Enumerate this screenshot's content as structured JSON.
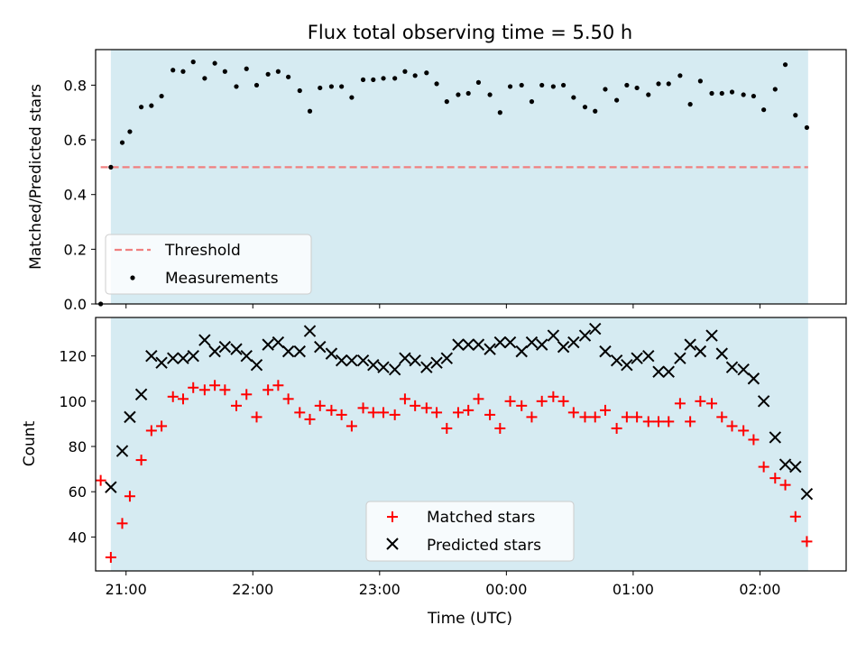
{
  "chart_data": [
    {
      "type": "scatter",
      "title": "Flux total observing time = 5.50 h",
      "ylabel": "Matched/Predicted stars",
      "xlabel": "",
      "ylim": [
        0,
        0.93
      ],
      "yticks": [
        "0.0",
        "0.2",
        "0.4",
        "0.6",
        "0.8"
      ],
      "xtick_values": [
        21,
        22,
        23,
        24,
        25,
        26
      ],
      "x_unit": "hours (UTC, relative to previous midnight)",
      "xlim": [
        20.76,
        26.68
      ],
      "observing_window": [
        20.88,
        26.38
      ],
      "shade_color": "#add8e6",
      "threshold": {
        "name": "Threshold",
        "value": 0.5,
        "x_range": [
          20.8,
          26.38
        ],
        "color": "#f08080"
      },
      "legend": {
        "position": "lower-left",
        "entries": [
          "Threshold",
          "Measurements"
        ]
      },
      "series": [
        {
          "name": "Measurements",
          "color": "#000000",
          "x": [
            20.8,
            20.88,
            20.97,
            21.03,
            21.12,
            21.2,
            21.28,
            21.37,
            21.45,
            21.53,
            21.62,
            21.7,
            21.78,
            21.87,
            21.95,
            22.03,
            22.12,
            22.2,
            22.28,
            22.37,
            22.45,
            22.53,
            22.62,
            22.7,
            22.78,
            22.87,
            22.95,
            23.03,
            23.12,
            23.2,
            23.28,
            23.37,
            23.45,
            23.53,
            23.62,
            23.7,
            23.78,
            23.87,
            23.95,
            24.03,
            24.12,
            24.2,
            24.28,
            24.37,
            24.45,
            24.53,
            24.62,
            24.7,
            24.78,
            24.87,
            24.95,
            25.03,
            25.12,
            25.2,
            25.28,
            25.37,
            25.45,
            25.53,
            25.62,
            25.7,
            25.78,
            25.87,
            25.95,
            26.03,
            26.12,
            26.2,
            26.28,
            26.37
          ],
          "y": [
            0.0,
            0.5,
            0.59,
            0.63,
            0.72,
            0.725,
            0.76,
            0.855,
            0.85,
            0.885,
            0.825,
            0.88,
            0.85,
            0.795,
            0.86,
            0.8,
            0.84,
            0.85,
            0.83,
            0.78,
            0.705,
            0.79,
            0.795,
            0.795,
            0.755,
            0.82,
            0.82,
            0.825,
            0.825,
            0.85,
            0.835,
            0.845,
            0.805,
            0.74,
            0.765,
            0.77,
            0.81,
            0.765,
            0.7,
            0.795,
            0.8,
            0.74,
            0.8,
            0.795,
            0.8,
            0.755,
            0.72,
            0.705,
            0.785,
            0.745,
            0.8,
            0.79,
            0.765,
            0.805,
            0.805,
            0.835,
            0.73,
            0.815,
            0.77,
            0.77,
            0.775,
            0.765,
            0.76,
            0.71,
            0.785,
            0.875,
            0.69,
            0.645
          ]
        }
      ]
    },
    {
      "type": "scatter",
      "title": "",
      "ylabel": "Count",
      "xlabel": "Time (UTC)",
      "ylim": [
        25,
        137
      ],
      "yticks": [
        "40",
        "60",
        "80",
        "100",
        "120"
      ],
      "xtick_labels": [
        "21:00",
        "22:00",
        "23:00",
        "00:00",
        "01:00",
        "02:00"
      ],
      "xtick_values": [
        21,
        22,
        23,
        24,
        25,
        26
      ],
      "xlim": [
        20.76,
        26.68
      ],
      "observing_window": [
        20.88,
        26.38
      ],
      "shade_color": "#add8e6",
      "legend": {
        "position": "lower-center",
        "entries": [
          "Matched stars",
          "Predicted stars"
        ]
      },
      "series": [
        {
          "name": "Matched stars",
          "marker": "plus",
          "color": "#ff0000",
          "x": [
            20.8,
            20.88,
            20.97,
            21.03,
            21.12,
            21.2,
            21.28,
            21.37,
            21.45,
            21.53,
            21.62,
            21.7,
            21.78,
            21.87,
            21.95,
            22.03,
            22.12,
            22.2,
            22.28,
            22.37,
            22.45,
            22.53,
            22.62,
            22.7,
            22.78,
            22.87,
            22.95,
            23.03,
            23.12,
            23.2,
            23.28,
            23.37,
            23.45,
            23.53,
            23.62,
            23.7,
            23.78,
            23.87,
            23.95,
            24.03,
            24.12,
            24.2,
            24.28,
            24.37,
            24.45,
            24.53,
            24.62,
            24.7,
            24.78,
            24.87,
            24.95,
            25.03,
            25.12,
            25.2,
            25.28,
            25.37,
            25.45,
            25.53,
            25.62,
            25.7,
            25.78,
            25.87,
            25.95,
            26.03,
            26.12,
            26.2,
            26.28,
            26.37
          ],
          "y": [
            65,
            31,
            46,
            58,
            74,
            87,
            89,
            102,
            101,
            106,
            105,
            107,
            105,
            98,
            103,
            93,
            105,
            107,
            101,
            95,
            92,
            98,
            96,
            94,
            89,
            97,
            95,
            95,
            94,
            101,
            98,
            97,
            95,
            88,
            95,
            96,
            101,
            94,
            88,
            100,
            98,
            93,
            100,
            102,
            100,
            95,
            93,
            93,
            96,
            88,
            93,
            93,
            91,
            91,
            91,
            99,
            91,
            100,
            99,
            93,
            89,
            87,
            83,
            71,
            66,
            63,
            49,
            38
          ]
        },
        {
          "name": "Predicted stars",
          "marker": "x",
          "color": "#000000",
          "x": [
            20.88,
            20.97,
            21.03,
            21.12,
            21.2,
            21.28,
            21.37,
            21.45,
            21.53,
            21.62,
            21.7,
            21.78,
            21.87,
            21.95,
            22.03,
            22.12,
            22.2,
            22.28,
            22.37,
            22.45,
            22.53,
            22.62,
            22.7,
            22.78,
            22.87,
            22.95,
            23.03,
            23.12,
            23.2,
            23.28,
            23.37,
            23.45,
            23.53,
            23.62,
            23.7,
            23.78,
            23.87,
            23.95,
            24.03,
            24.12,
            24.2,
            24.28,
            24.37,
            24.45,
            24.53,
            24.62,
            24.7,
            24.78,
            24.87,
            24.95,
            25.03,
            25.12,
            25.2,
            25.28,
            25.37,
            25.45,
            25.53,
            25.62,
            25.7,
            25.78,
            25.87,
            25.95,
            26.03,
            26.12,
            26.2,
            26.28,
            26.37
          ],
          "y": [
            62,
            78,
            93,
            103,
            120,
            117,
            119,
            119,
            120,
            127,
            122,
            124,
            123,
            120,
            116,
            125,
            126,
            122,
            122,
            131,
            124,
            121,
            118,
            118,
            118,
            116,
            115,
            114,
            119,
            118,
            115,
            117,
            119,
            125,
            125,
            125,
            123,
            126,
            126,
            122,
            126,
            125,
            129,
            124,
            126,
            129,
            132,
            122,
            118,
            116,
            119,
            120,
            113,
            113,
            119,
            125,
            122,
            129,
            121,
            115,
            114,
            110,
            100,
            84,
            72,
            71,
            59
          ]
        }
      ]
    }
  ]
}
